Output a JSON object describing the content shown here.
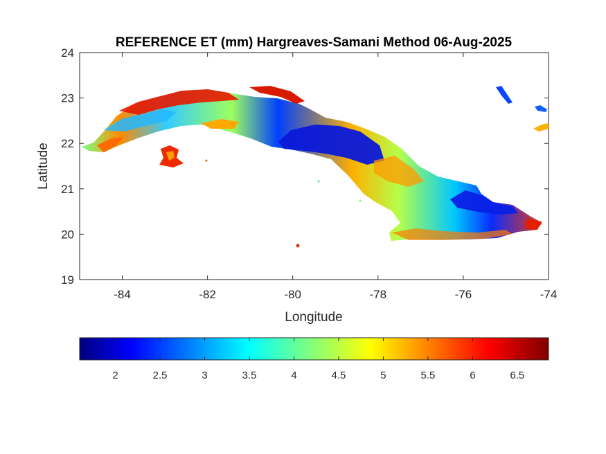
{
  "title": "REFERENCE ET (mm) Hargreaves-Samani Method  06-Aug-2025",
  "xlabel": "Longitude",
  "ylabel": "Latitude",
  "x_ticks": [
    "-84",
    "-82",
    "-80",
    "-78",
    "-76",
    "-74"
  ],
  "y_ticks": [
    "24",
    "23",
    "22",
    "21",
    "20",
    "19"
  ],
  "xlim": [
    -85,
    -74
  ],
  "ylim": [
    19,
    24
  ],
  "colorbar": {
    "colormap": "jet",
    "range": [
      1.6,
      6.85
    ],
    "ticks": [
      "2",
      "2.5",
      "3",
      "3.5",
      "4",
      "4.5",
      "5",
      "5.5",
      "6",
      "6.5"
    ],
    "tick_values": [
      2,
      2.5,
      3,
      3.5,
      4,
      4.5,
      5,
      5.5,
      6,
      6.5
    ]
  },
  "colors": {
    "jet_stops": [
      "#00007f",
      "#0000ff",
      "#007fff",
      "#00ffff",
      "#7fff7f",
      "#ffff00",
      "#ff7f00",
      "#ff0000",
      "#7f0000"
    ]
  }
}
